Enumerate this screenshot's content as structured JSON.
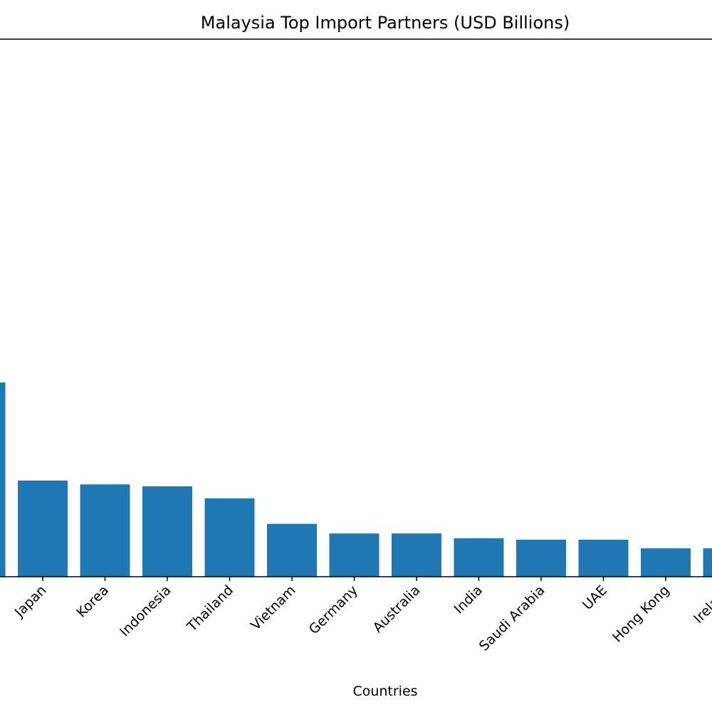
{
  "chart_data": {
    "type": "bar",
    "title": "Malaysia Top Import Partners (USD Billions)",
    "xlabel": "Countries",
    "ylabel": "",
    "categories": [
      "",
      "Japan",
      "Korea",
      "Indonesia",
      "Thailand",
      "Vietnam",
      "Germany",
      "Australia",
      "India",
      "Saudi Arabia",
      "UAE",
      "Hong Kong",
      "Ireland"
    ],
    "values": [
      40.4,
      20.0,
      19.2,
      18.8,
      16.3,
      11.0,
      9.0,
      9.0,
      8.0,
      7.7,
      7.7,
      5.9,
      5.9
    ],
    "ylim": [
      0,
      111.8
    ],
    "color": "#1f77b4",
    "grid": false
  }
}
